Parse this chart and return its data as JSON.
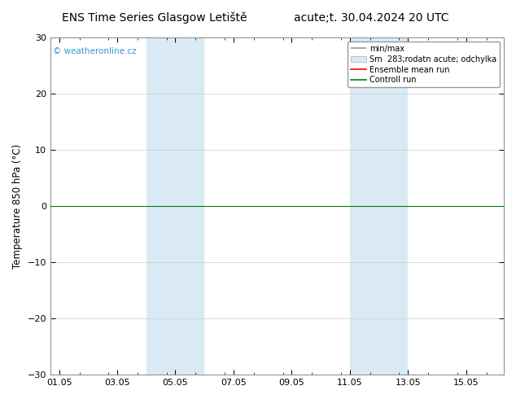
{
  "title_left": "ENS Time Series Glasgow Letiště",
  "title_right": "acute;t. 30.04.2024 20 UTC",
  "ylabel": "Temperature 850 hPa (°C)",
  "ylim": [
    -30,
    30
  ],
  "yticks": [
    -30,
    -20,
    -10,
    0,
    10,
    20,
    30
  ],
  "xtick_labels": [
    "01.05",
    "03.05",
    "05.05",
    "07.05",
    "09.05",
    "11.05",
    "13.05",
    "15.05"
  ],
  "xtick_positions": [
    0,
    2,
    4,
    6,
    8,
    10,
    12,
    14
  ],
  "xlim": [
    -0.3,
    15.3
  ],
  "shaded_bands": [
    {
      "xstart": 3.0,
      "xend": 5.0
    },
    {
      "xstart": 10.0,
      "xend": 12.0
    }
  ],
  "shade_color": "#daeaf5",
  "watermark": "© weatheronline.cz",
  "watermark_color": "#3399cc",
  "legend_labels": [
    "min/max",
    "Sm  283;rodatn acute; odchylka",
    "Ensemble mean run",
    "Controll run"
  ],
  "legend_colors": [
    "#999999",
    "#ccddee",
    "red",
    "green"
  ],
  "bg_color": "#ffffff",
  "grid_color": "#cccccc",
  "title_fontsize": 10,
  "axis_label_fontsize": 8.5,
  "tick_fontsize": 8
}
